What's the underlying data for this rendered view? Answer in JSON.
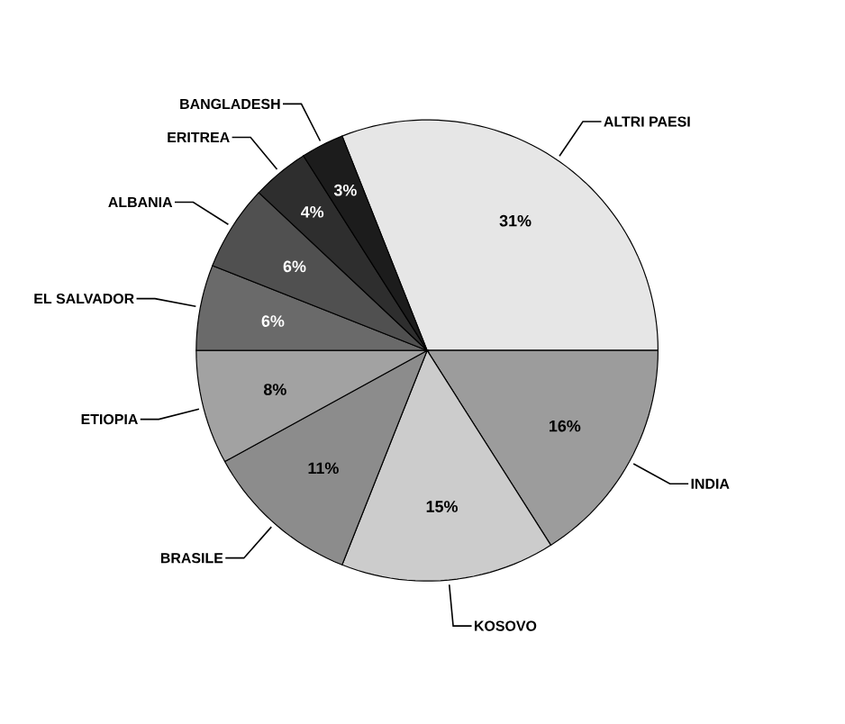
{
  "chart_data": {
    "type": "pie",
    "categories": [
      "ALTRI PAESI",
      "INDIA",
      "KOSOVO",
      "BRASILE",
      "ETIOPIA",
      "EL SALVADOR",
      "ALBANIA",
      "ERITREA",
      "BANGLADESH"
    ],
    "values": [
      31,
      16,
      15,
      11,
      8,
      6,
      6,
      4,
      3
    ],
    "value_labels": [
      "31%",
      "16%",
      "15%",
      "11%",
      "8%",
      "6%",
      "6%",
      "4%",
      "3%"
    ],
    "colors": [
      "#e6e6e6",
      "#9c9c9c",
      "#cccccc",
      "#8c8c8c",
      "#a2a2a2",
      "#6a6a6a",
      "#505050",
      "#2e2e2e",
      "#1c1c1c"
    ]
  }
}
